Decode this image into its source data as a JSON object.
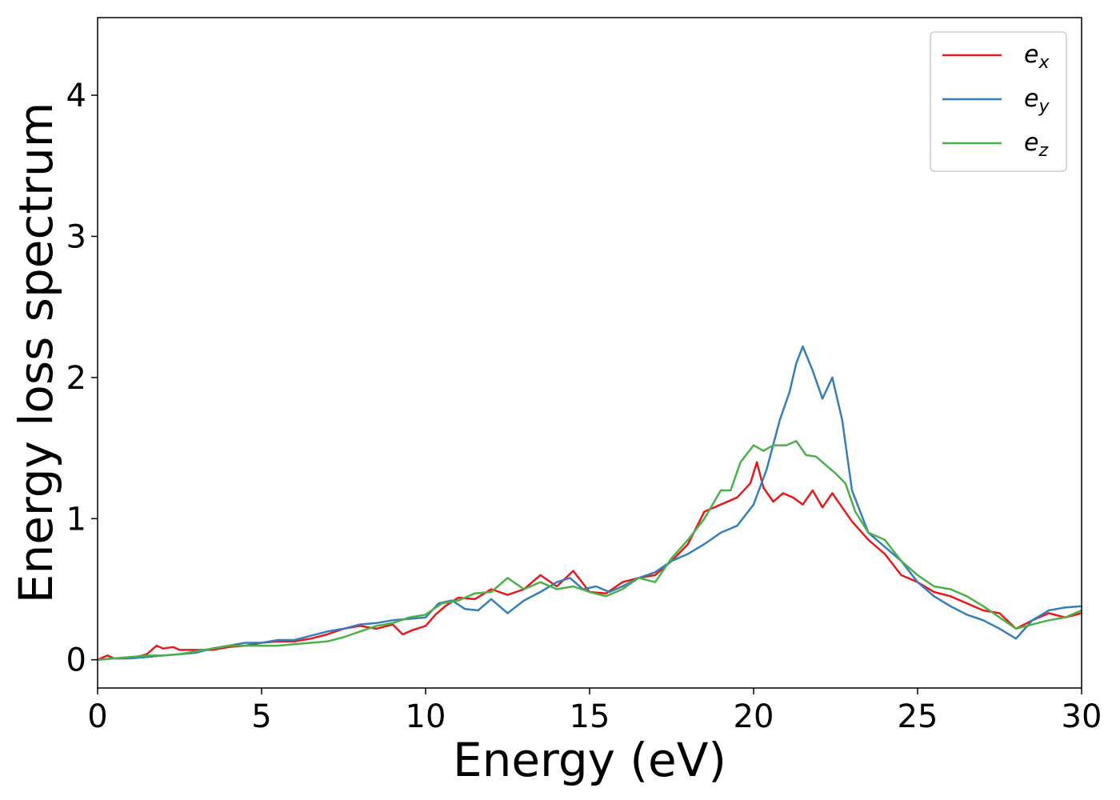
{
  "chart_data": {
    "type": "line",
    "xlabel": "Energy (eV)",
    "ylabel": "Energy loss spectrum",
    "xlim": [
      0,
      30
    ],
    "ylim": [
      -0.2,
      4.55
    ],
    "xticks": [
      "0",
      "5",
      "10",
      "15",
      "20",
      "25",
      "30"
    ],
    "yticks": [
      "0",
      "1",
      "2",
      "3",
      "4"
    ],
    "grid": false,
    "legend_position": "top-right",
    "series": [
      {
        "name": "e_x",
        "label_base": "e",
        "label_sub": "x",
        "color": "#e41a1c",
        "x": [
          0,
          0.3,
          0.5,
          0.8,
          1.2,
          1.5,
          1.8,
          2.0,
          2.3,
          2.5,
          2.8,
          3,
          3.5,
          4,
          4.5,
          5,
          5.5,
          6,
          6.5,
          7,
          7.5,
          8,
          8.5,
          9,
          9.3,
          9.6,
          10,
          10.3,
          10.6,
          11,
          11.5,
          12,
          12.5,
          13,
          13.5,
          14,
          14.5,
          15,
          15.5,
          16,
          16.5,
          17,
          17.5,
          18,
          18.5,
          19,
          19.5,
          19.9,
          20.1,
          20.3,
          20.6,
          20.9,
          21.2,
          21.5,
          21.8,
          22.1,
          22.4,
          22.7,
          23,
          23.5,
          24,
          24.5,
          25,
          25.5,
          26,
          26.5,
          27,
          27.5,
          28,
          28.5,
          29,
          29.5,
          30
        ],
        "values": [
          0.0,
          0.03,
          0.01,
          0.01,
          0.02,
          0.04,
          0.1,
          0.08,
          0.09,
          0.07,
          0.07,
          0.07,
          0.07,
          0.09,
          0.1,
          0.12,
          0.13,
          0.13,
          0.15,
          0.18,
          0.22,
          0.24,
          0.22,
          0.25,
          0.18,
          0.21,
          0.24,
          0.32,
          0.38,
          0.44,
          0.43,
          0.5,
          0.46,
          0.5,
          0.6,
          0.52,
          0.63,
          0.48,
          0.47,
          0.55,
          0.58,
          0.6,
          0.7,
          0.82,
          1.05,
          1.1,
          1.15,
          1.25,
          1.4,
          1.22,
          1.12,
          1.18,
          1.15,
          1.1,
          1.2,
          1.08,
          1.18,
          1.08,
          0.98,
          0.85,
          0.75,
          0.6,
          0.55,
          0.48,
          0.45,
          0.4,
          0.35,
          0.33,
          0.22,
          0.28,
          0.33,
          0.3,
          0.33
        ]
      },
      {
        "name": "e_y",
        "label_base": "e",
        "label_sub": "y",
        "color": "#377eb8",
        "x": [
          0,
          0.5,
          1,
          1.5,
          2,
          2.5,
          3,
          3.5,
          4,
          4.5,
          5,
          5.5,
          6,
          6.5,
          7,
          7.5,
          8,
          8.5,
          9,
          9.5,
          10,
          10.4,
          10.8,
          11.2,
          11.6,
          12,
          12.5,
          13,
          13.5,
          14,
          14.4,
          14.8,
          15.2,
          15.6,
          16,
          16.5,
          17,
          17.5,
          18,
          18.5,
          19,
          19.5,
          20,
          20.4,
          20.8,
          21.1,
          21.3,
          21.5,
          21.8,
          22.1,
          22.4,
          22.7,
          23,
          23.5,
          24,
          24.5,
          25,
          25.5,
          26,
          26.5,
          27,
          27.5,
          28,
          28.5,
          29,
          29.5,
          30
        ],
        "values": [
          0.0,
          0.01,
          0.01,
          0.02,
          0.03,
          0.04,
          0.05,
          0.08,
          0.1,
          0.12,
          0.12,
          0.14,
          0.14,
          0.17,
          0.2,
          0.22,
          0.25,
          0.26,
          0.28,
          0.29,
          0.3,
          0.4,
          0.42,
          0.36,
          0.35,
          0.43,
          0.33,
          0.42,
          0.48,
          0.55,
          0.58,
          0.5,
          0.52,
          0.48,
          0.52,
          0.58,
          0.62,
          0.7,
          0.75,
          0.82,
          0.9,
          0.95,
          1.1,
          1.35,
          1.7,
          1.9,
          2.1,
          2.22,
          2.05,
          1.85,
          2.0,
          1.7,
          1.2,
          0.9,
          0.8,
          0.7,
          0.55,
          0.45,
          0.38,
          0.32,
          0.28,
          0.22,
          0.15,
          0.28,
          0.35,
          0.37,
          0.38
        ]
      },
      {
        "name": "e_z",
        "label_base": "e",
        "label_sub": "z",
        "color": "#4daf4a",
        "x": [
          0,
          0.5,
          1,
          1.5,
          2,
          2.5,
          3,
          3.5,
          4,
          4.5,
          5,
          5.5,
          6,
          6.5,
          7,
          7.5,
          8,
          8.5,
          9,
          9.5,
          10,
          10.5,
          11,
          11.5,
          12,
          12.5,
          13,
          13.5,
          14,
          14.5,
          15,
          15.5,
          16,
          16.5,
          17,
          17.5,
          18,
          18.5,
          19,
          19.3,
          19.6,
          20,
          20.3,
          20.6,
          21,
          21.3,
          21.6,
          21.9,
          22.2,
          22.5,
          22.8,
          23.1,
          23.5,
          24,
          24.5,
          25,
          25.5,
          26,
          26.5,
          27,
          27.5,
          28,
          28.5,
          29,
          29.5,
          30
        ],
        "values": [
          0.0,
          0.01,
          0.02,
          0.03,
          0.03,
          0.04,
          0.06,
          0.08,
          0.1,
          0.1,
          0.1,
          0.1,
          0.11,
          0.12,
          0.13,
          0.16,
          0.2,
          0.24,
          0.26,
          0.3,
          0.32,
          0.4,
          0.42,
          0.47,
          0.48,
          0.58,
          0.5,
          0.55,
          0.5,
          0.52,
          0.48,
          0.45,
          0.5,
          0.58,
          0.55,
          0.72,
          0.85,
          1.0,
          1.2,
          1.2,
          1.4,
          1.52,
          1.48,
          1.52,
          1.52,
          1.55,
          1.45,
          1.44,
          1.38,
          1.32,
          1.25,
          1.05,
          0.9,
          0.85,
          0.7,
          0.6,
          0.52,
          0.5,
          0.45,
          0.38,
          0.3,
          0.22,
          0.25,
          0.28,
          0.3,
          0.35
        ]
      }
    ]
  }
}
